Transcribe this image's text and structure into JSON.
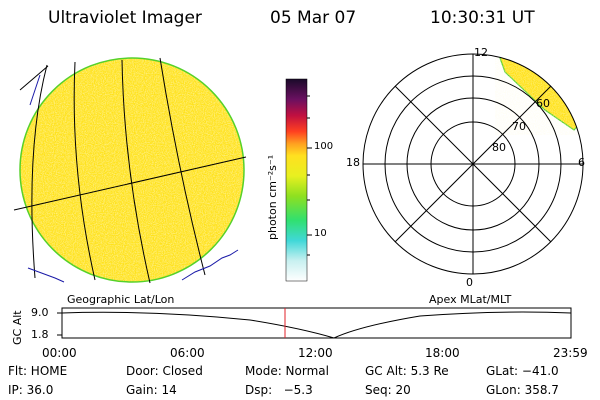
{
  "header": {
    "title": "Ultraviolet Imager",
    "date": "05 Mar 07",
    "time": "10:30:31 UT"
  },
  "colorbar": {
    "ticks": [
      "100",
      "10"
    ],
    "unit_label": "photon cm⁻²s⁻¹"
  },
  "panels": {
    "left_label": "Geographic Lat/Lon",
    "right_label": "Apex MLat/MLT"
  },
  "polar": {
    "mlt_labels": {
      "top": "12",
      "left": "18",
      "right": "6",
      "bottom": "0"
    },
    "lat_labels": [
      "60",
      "70",
      "80"
    ]
  },
  "altitude": {
    "ylabel": "GC Alt",
    "y_ticks": [
      "9.0",
      "1.8"
    ],
    "x_ticks": [
      "00:00",
      "06:00",
      "12:00",
      "18:00",
      "23:59"
    ],
    "current_time_marker": "10:30"
  },
  "status": {
    "row1": {
      "filter": "Flt: HOME",
      "door": "Door: Closed",
      "mode": "Mode: Normal",
      "gc_alt": "GC Alt: 5.3 Re",
      "glat": "GLat: −41.0"
    },
    "row2": {
      "ip": "IP: 36.0",
      "gain": "Gain: 14",
      "dsp": "Dsp:   −5.3",
      "seq": "Seq: 20",
      "glon": "GLon: 358.7"
    }
  },
  "colors": {
    "image_fill": "#ffe21a",
    "limb": "#55d12a",
    "grid": "#000000",
    "coast": "#1a1aa8",
    "time_marker": "#e0202a"
  }
}
